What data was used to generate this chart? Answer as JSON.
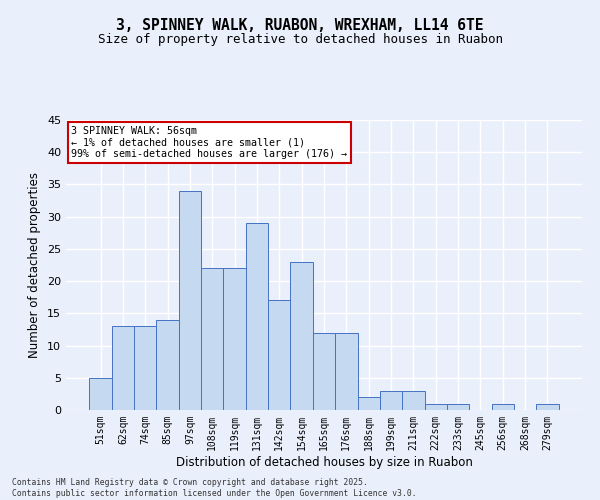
{
  "title_line1": "3, SPINNEY WALK, RUABON, WREXHAM, LL14 6TE",
  "title_line2": "Size of property relative to detached houses in Ruabon",
  "xlabel": "Distribution of detached houses by size in Ruabon",
  "ylabel": "Number of detached properties",
  "categories": [
    "51sqm",
    "62sqm",
    "74sqm",
    "85sqm",
    "97sqm",
    "108sqm",
    "119sqm",
    "131sqm",
    "142sqm",
    "154sqm",
    "165sqm",
    "176sqm",
    "188sqm",
    "199sqm",
    "211sqm",
    "222sqm",
    "233sqm",
    "245sqm",
    "256sqm",
    "268sqm",
    "279sqm"
  ],
  "values": [
    5,
    13,
    13,
    14,
    34,
    22,
    22,
    29,
    17,
    23,
    12,
    12,
    2,
    3,
    3,
    1,
    1,
    0,
    1,
    0,
    1
  ],
  "bar_color": "#c5d9f1",
  "bar_edge_color": "#4472c4",
  "annotation_title": "3 SPINNEY WALK: 56sqm",
  "annotation_line1": "← 1% of detached houses are smaller (1)",
  "annotation_line2": "99% of semi-detached houses are larger (176) →",
  "annotation_box_color": "#ffffff",
  "annotation_box_edge_color": "#cc0000",
  "ylim": [
    0,
    45
  ],
  "yticks": [
    0,
    5,
    10,
    15,
    20,
    25,
    30,
    35,
    40,
    45
  ],
  "footer_line1": "Contains HM Land Registry data © Crown copyright and database right 2025.",
  "footer_line2": "Contains public sector information licensed under the Open Government Licence v3.0.",
  "bg_color": "#eaf0fb",
  "grid_color": "#ffffff"
}
